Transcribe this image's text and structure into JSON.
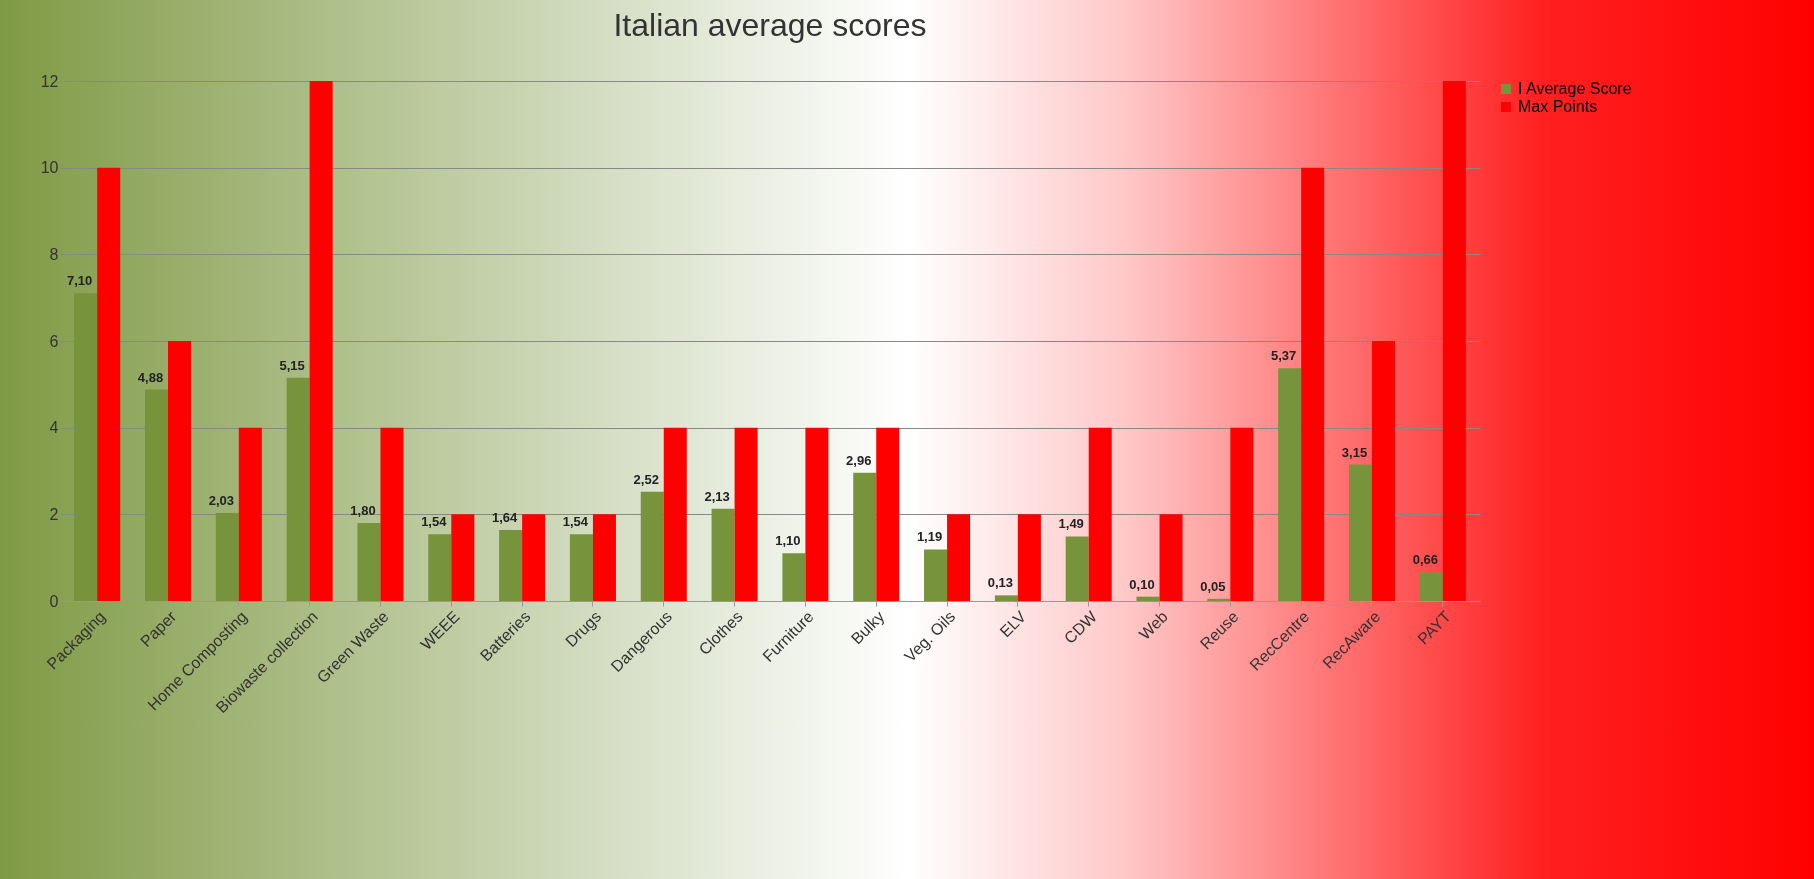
{
  "chart_data": {
    "type": "bar",
    "title": "Italian average scores",
    "categories": [
      "Packaging",
      "Paper",
      "Home Composting",
      "Biowaste collection",
      "Green Waste",
      "WEEE",
      "Batteries",
      "Drugs",
      "Dangerous",
      "Clothes",
      "Furniture",
      "Bulky",
      "Veg. Oils",
      "ELV",
      "CDW",
      "Web",
      "Reuse",
      "RecCentre",
      "RecAware",
      "PAYT"
    ],
    "series": [
      {
        "name": "I Average Score",
        "color": "#77933c",
        "values": [
          7.1,
          4.88,
          2.03,
          5.15,
          1.8,
          1.54,
          1.64,
          1.54,
          2.52,
          2.13,
          1.1,
          2.96,
          1.19,
          0.13,
          1.49,
          0.1,
          0.05,
          5.37,
          3.15,
          0.66
        ],
        "value_labels": [
          "7,10",
          "4,88",
          "2,03",
          "5,15",
          "1,80",
          "1,54",
          "1,64",
          "1,54",
          "2,52",
          "2,13",
          "1,10",
          "2,96",
          "1,19",
          "0,13",
          "1,49",
          "0,10",
          "0,05",
          "5,37",
          "3,15",
          "0,66"
        ]
      },
      {
        "name": "Max Points",
        "color": "#ff0000",
        "values": [
          10,
          6,
          4,
          12,
          4,
          2,
          2,
          2,
          4,
          4,
          4,
          4,
          2,
          2,
          4,
          2,
          4,
          10,
          6,
          12
        ]
      }
    ],
    "ylim": [
      0,
      12
    ],
    "yticks": [
      0,
      2,
      4,
      6,
      8,
      10,
      12
    ],
    "grid": "y",
    "legend": "right"
  }
}
